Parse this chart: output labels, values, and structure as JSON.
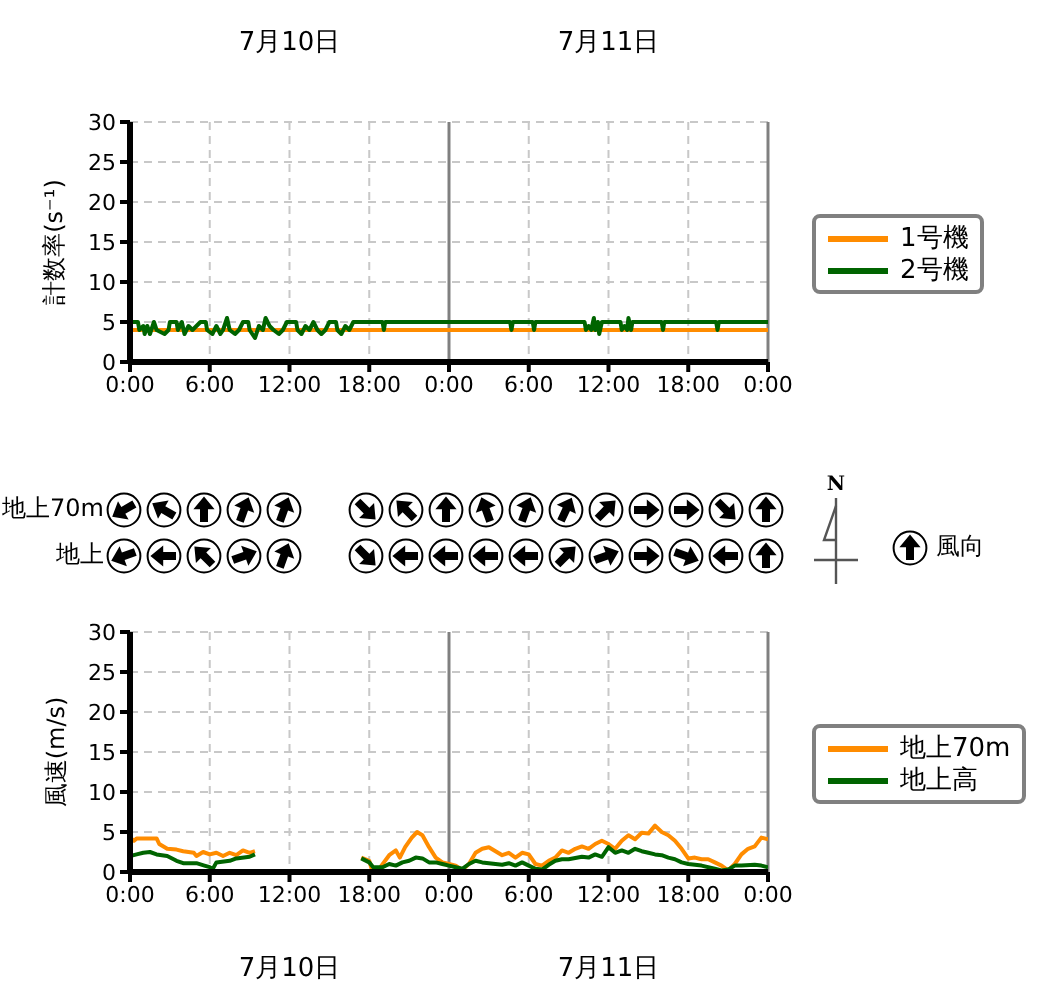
{
  "chart_data": [
    {
      "type": "line",
      "ylabel": "計数率(s⁻¹)",
      "annotations": [
        "7月10日",
        "7月11日"
      ],
      "xlim": [
        "--07-10T00:00",
        "--07-12T00:00"
      ],
      "xticks": [
        {
          "value": "--07-10T00:00",
          "label": "0:00"
        },
        {
          "value": "--07-10T06:00",
          "label": "6:00"
        },
        {
          "value": "--07-10T12:00",
          "label": "12:00"
        },
        {
          "value": "--07-10T18:00",
          "label": "18:00"
        },
        {
          "value": "--07-11T00:00",
          "label": "0:00"
        },
        {
          "value": "--07-11T06:00",
          "label": "6:00"
        },
        {
          "value": "--07-11T12:00",
          "label": "12:00"
        },
        {
          "value": "--07-11T18:00",
          "label": "18:00"
        },
        {
          "value": "--07-12T00:00",
          "label": "0:00"
        }
      ],
      "ylim": [
        0,
        30
      ],
      "yticks": [
        0,
        5,
        10,
        15,
        20,
        25,
        30
      ],
      "grid": true,
      "legend": "right",
      "ref_lines": [
        {
          "axis": "x",
          "value": "--07-11T00:00",
          "color": "#808080"
        },
        {
          "axis": "x",
          "value": "--07-12T00:00",
          "color": "#808080"
        }
      ],
      "series": [
        {
          "name": "1号機",
          "color": "#ff8c00",
          "x": [
            "--07-10T00:00",
            "--07-12T00:00"
          ],
          "values": [
            4,
            4
          ]
        },
        {
          "name": "2号機",
          "color": "#006400",
          "x": [
            "--07-10T00:00",
            "--07-10T00:36",
            "--07-10T00:42",
            "--07-10T01:00",
            "--07-10T01:06",
            "--07-10T01:18",
            "--07-10T01:30",
            "--07-10T01:48",
            "--07-10T02:00",
            "--07-10T02:36",
            "--07-10T02:54",
            "--07-10T03:00",
            "--07-10T03:30",
            "--07-10T03:36",
            "--07-10T03:54",
            "--07-10T04:06",
            "--07-10T04:24",
            "--07-10T04:42",
            "--07-10T05:18",
            "--07-10T05:42",
            "--07-10T05:48",
            "--07-10T06:12",
            "--07-10T06:30",
            "--07-10T06:48",
            "--07-10T07:00",
            "--07-10T07:18",
            "--07-10T07:30",
            "--07-10T07:54",
            "--07-10T08:12",
            "--07-10T08:30",
            "--07-10T08:54",
            "--07-10T09:00",
            "--07-10T09:24",
            "--07-10T09:42",
            "--07-10T10:00",
            "--07-10T10:12",
            "--07-10T10:30",
            "--07-10T10:48",
            "--07-10T11:12",
            "--07-10T11:30",
            "--07-10T11:48",
            "--07-10T12:30",
            "--07-10T12:36",
            "--07-10T12:54",
            "--07-10T13:12",
            "--07-10T13:30",
            "--07-10T13:48",
            "--07-10T14:06",
            "--07-10T14:24",
            "--07-10T14:42",
            "--07-10T15:00",
            "--07-10T15:30",
            "--07-10T15:36",
            "--07-10T15:54",
            "--07-10T16:12",
            "--07-10T16:30",
            "--07-10T16:48",
            "--07-10T19:00",
            "--07-10T19:06",
            "--07-10T19:12",
            "--07-11T04:36",
            "--07-11T04:42",
            "--07-11T04:48",
            "--07-11T06:18",
            "--07-11T06:24",
            "--07-11T06:30",
            "--07-11T10:12",
            "--07-11T10:18",
            "--07-11T10:30",
            "--07-11T10:42",
            "--07-11T10:54",
            "--07-11T11:00",
            "--07-11T11:12",
            "--07-11T11:18",
            "--07-11T11:30",
            "--07-11T12:54",
            "--07-11T13:00",
            "--07-11T13:12",
            "--07-11T13:24",
            "--07-11T13:30",
            "--07-11T13:42",
            "--07-11T13:48",
            "--07-11T16:00",
            "--07-11T16:06",
            "--07-11T16:12",
            "--07-11T20:06",
            "--07-11T20:12",
            "--07-11T20:18",
            "--07-12T00:00"
          ],
          "values": [
            5,
            5,
            4,
            4.5,
            3.5,
            4.5,
            3.5,
            5,
            4,
            3.5,
            4,
            5,
            5,
            4,
            5,
            3.5,
            4.5,
            4,
            5,
            5,
            4,
            3.5,
            4.5,
            3.5,
            4,
            5.5,
            4,
            3.5,
            4,
            5,
            5,
            4,
            3,
            4.5,
            4,
            5.5,
            4.5,
            4,
            3.5,
            4,
            5,
            5,
            4,
            3.5,
            4.5,
            4,
            5,
            4,
            3.5,
            4,
            5,
            5,
            4,
            3.5,
            4.5,
            4,
            5,
            5,
            4,
            5,
            5,
            4,
            5,
            5,
            4,
            5,
            5,
            4,
            4.5,
            4,
            5.5,
            4,
            5,
            3.5,
            5,
            5,
            4,
            4.5,
            4,
            5.5,
            4,
            5,
            5,
            4,
            5,
            5,
            4,
            5,
            5
          ]
        }
      ]
    },
    {
      "type": "other",
      "annotations": [
        "地上70m",
        "地上",
        "N",
        "風向"
      ]
    },
    {
      "type": "line",
      "ylabel": "風速(m/s)",
      "annotations": [
        "7月10日",
        "7月11日"
      ],
      "xlim": [
        "--07-10T00:00",
        "--07-12T00:00"
      ],
      "xticks": [
        {
          "value": "--07-10T00:00",
          "label": "0:00"
        },
        {
          "value": "--07-10T06:00",
          "label": "6:00"
        },
        {
          "value": "--07-10T12:00",
          "label": "12:00"
        },
        {
          "value": "--07-10T18:00",
          "label": "18:00"
        },
        {
          "value": "--07-11T00:00",
          "label": "0:00"
        },
        {
          "value": "--07-11T06:00",
          "label": "6:00"
        },
        {
          "value": "--07-11T12:00",
          "label": "12:00"
        },
        {
          "value": "--07-11T18:00",
          "label": "18:00"
        },
        {
          "value": "--07-12T00:00",
          "label": "0:00"
        }
      ],
      "ylim": [
        0,
        30
      ],
      "yticks": [
        0,
        5,
        10,
        15,
        20,
        25,
        30
      ],
      "grid": true,
      "legend": "right",
      "ref_lines": [
        {
          "axis": "x",
          "value": "--07-11T00:00",
          "color": "#808080"
        },
        {
          "axis": "x",
          "value": "--07-12T00:00",
          "color": "#808080"
        }
      ],
      "series": [
        {
          "name": "地上70m",
          "color": "#ff8c00",
          "x": [
            "--07-10T00:00",
            "--07-10T00:18",
            "--07-10T00:30",
            "--07-10T02:00",
            "--07-10T02:12",
            "--07-10T02:48",
            "--07-10T03:30",
            "--07-10T04:00",
            "--07-10T04:48",
            "--07-10T05:00",
            "--07-10T05:30",
            "--07-10T06:00",
            "--07-10T06:30",
            "--07-10T07:00",
            "--07-10T07:30",
            "--07-10T08:00",
            "--07-10T08:30",
            "--07-10T09:00",
            "--07-10T09:24",
            "--07-10T13:00",
            "--07-10T17:24",
            "--07-10T18:00",
            "--07-10T18:12",
            "--07-10T18:42",
            "--07-10T19:30",
            "--07-10T20:00",
            "--07-10T20:18",
            "--07-10T20:42",
            "--07-10T21:12",
            "--07-10T21:36",
            "--07-10T22:00",
            "--07-10T22:30",
            "--07-10T23:00",
            "--07-10T23:30",
            "--07-11T00:00",
            "--07-11T00:30",
            "--07-11T01:00",
            "--07-11T01:30",
            "--07-11T02:00",
            "--07-11T02:30",
            "--07-11T03:00",
            "--07-11T03:30",
            "--07-11T04:00",
            "--07-11T04:30",
            "--07-11T05:00",
            "--07-11T05:30",
            "--07-11T06:00",
            "--07-11T06:30",
            "--07-11T07:00",
            "--07-11T07:30",
            "--07-11T08:00",
            "--07-11T08:30",
            "--07-11T09:00",
            "--07-11T09:30",
            "--07-11T10:00",
            "--07-11T10:30",
            "--07-11T11:00",
            "--07-11T11:30",
            "--07-11T12:00",
            "--07-11T12:30",
            "--07-11T13:00",
            "--07-11T13:30",
            "--07-11T14:00",
            "--07-11T14:30",
            "--07-11T15:00",
            "--07-11T15:30",
            "--07-11T16:00",
            "--07-11T16:30",
            "--07-11T17:00",
            "--07-11T17:30",
            "--07-11T18:00",
            "--07-11T18:30",
            "--07-11T19:00",
            "--07-11T19:30",
            "--07-11T20:00",
            "--07-11T20:30",
            "--07-11T21:00",
            "--07-11T21:30",
            "--07-11T22:00",
            "--07-11T22:30",
            "--07-11T23:00",
            "--07-11T23:30",
            "--07-12T00:00"
          ],
          "values": [
            4.3,
            3.9,
            4.2,
            4.2,
            3.5,
            2.9,
            2.8,
            2.6,
            2.4,
            2.0,
            2.5,
            2.2,
            2.4,
            2.0,
            2.4,
            2.1,
            2.7,
            2.4,
            2.6,
            null,
            1.8,
            1.4,
            0.3,
            0.3,
            2.1,
            2.7,
            1.8,
            3.1,
            4.3,
            5.0,
            4.6,
            3.1,
            1.8,
            1.2,
            1.0,
            0.8,
            0.3,
            1.0,
            2.4,
            2.9,
            3.1,
            2.6,
            2.1,
            2.4,
            1.8,
            2.4,
            2.2,
            1.0,
            0.8,
            1.4,
            1.8,
            2.7,
            2.4,
            2.9,
            3.2,
            2.9,
            3.5,
            3.9,
            3.5,
            2.9,
            3.9,
            4.6,
            4.1,
            4.9,
            4.8,
            5.8,
            5.0,
            4.6,
            3.9,
            2.9,
            1.7,
            1.8,
            1.6,
            1.6,
            1.2,
            0.8,
            0.2,
            1.0,
            2.2,
            2.9,
            3.2,
            4.3,
            4.1
          ]
        },
        {
          "name": "地上高",
          "color": "#006400",
          "x": [
            "--07-10T00:00",
            "--07-10T00:30",
            "--07-10T01:00",
            "--07-10T01:30",
            "--07-10T02:00",
            "--07-10T02:48",
            "--07-10T03:30",
            "--07-10T04:00",
            "--07-10T05:00",
            "--07-10T05:36",
            "--07-10T06:00",
            "--07-10T06:12",
            "--07-10T06:30",
            "--07-10T07:30",
            "--07-10T08:00",
            "--07-10T09:00",
            "--07-10T09:24",
            "--07-10T13:00",
            "--07-10T17:24",
            "--07-10T18:00",
            "--07-10T18:18",
            "--07-10T19:00",
            "--07-10T19:30",
            "--07-10T20:00",
            "--07-10T20:30",
            "--07-10T21:00",
            "--07-10T21:30",
            "--07-10T22:00",
            "--07-10T22:30",
            "--07-10T23:00",
            "--07-10T23:30",
            "--07-11T00:00",
            "--07-11T00:30",
            "--07-11T01:00",
            "--07-11T01:30",
            "--07-11T02:00",
            "--07-11T02:30",
            "--07-11T03:00",
            "--07-11T04:00",
            "--07-11T04:30",
            "--07-11T05:00",
            "--07-11T05:30",
            "--07-11T06:00",
            "--07-11T06:30",
            "--07-11T07:00",
            "--07-11T07:30",
            "--07-11T08:00",
            "--07-11T08:30",
            "--07-11T09:00",
            "--07-11T10:00",
            "--07-11T10:30",
            "--07-11T11:00",
            "--07-11T11:30",
            "--07-11T12:00",
            "--07-11T12:30",
            "--07-11T13:00",
            "--07-11T13:30",
            "--07-11T14:00",
            "--07-11T14:30",
            "--07-11T15:00",
            "--07-11T15:30",
            "--07-11T16:00",
            "--07-11T16:30",
            "--07-11T17:00",
            "--07-11T17:30",
            "--07-11T18:00",
            "--07-11T18:30",
            "--07-11T19:00",
            "--07-11T20:00",
            "--07-11T20:30",
            "--07-11T21:00",
            "--07-11T21:30",
            "--07-11T22:00",
            "--07-11T23:00",
            "--07-11T23:30",
            "--07-12T00:00"
          ],
          "values": [
            2.0,
            2.2,
            2.4,
            2.5,
            2.2,
            2.0,
            1.4,
            1.1,
            1.1,
            0.8,
            0.6,
            0.3,
            1.2,
            1.4,
            1.7,
            1.9,
            2.2,
            null,
            1.7,
            1.2,
            0.6,
            0.6,
            1.0,
            0.8,
            1.2,
            1.4,
            1.8,
            1.7,
            1.2,
            1.2,
            1.0,
            0.8,
            0.6,
            0.4,
            1.0,
            1.4,
            1.2,
            1.1,
            0.9,
            1.1,
            0.8,
            1.2,
            0.8,
            0.4,
            0.3,
            0.9,
            1.4,
            1.6,
            1.6,
            1.9,
            1.8,
            2.2,
            1.9,
            3.1,
            2.4,
            2.7,
            2.4,
            2.9,
            2.6,
            2.4,
            2.2,
            2.1,
            1.8,
            1.6,
            1.2,
            1.0,
            0.9,
            0.8,
            0.4,
            0.2,
            0.3,
            0.8,
            0.8,
            0.9,
            0.8,
            0.6
          ]
        }
      ]
    }
  ]
}
